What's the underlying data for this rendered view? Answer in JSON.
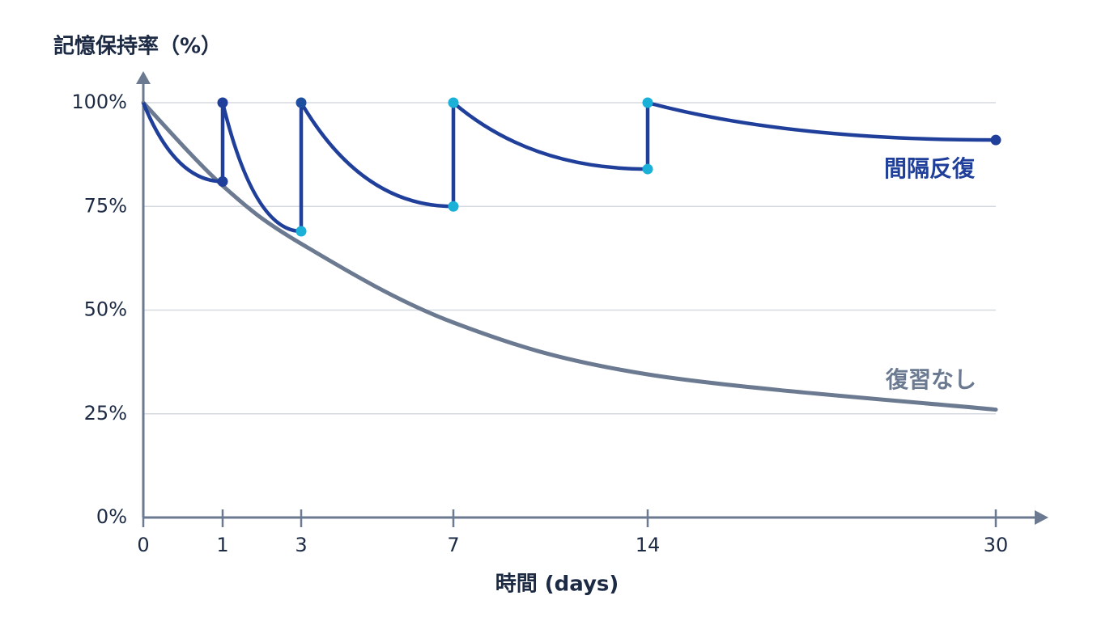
{
  "chart_data": {
    "type": "line",
    "y_label": "記憶保持率（%）",
    "x_label": "時間 (days)",
    "xlim": [
      0,
      30
    ],
    "xticks": [
      0,
      1,
      3,
      7,
      14,
      30
    ],
    "ylim": [
      0,
      100
    ],
    "yticks": [
      {
        "value": 0,
        "label": "0%"
      },
      {
        "value": 25,
        "label": "25%"
      },
      {
        "value": 50,
        "label": "50%"
      },
      {
        "value": 75,
        "label": "75%"
      },
      {
        "value": 100,
        "label": "100%"
      }
    ],
    "grid": true,
    "series": [
      {
        "name": "間隔反復",
        "color": "#1f3f9a",
        "x": [
          0,
          1,
          1,
          3,
          3,
          7,
          7,
          14,
          14,
          30
        ],
        "values": [
          100,
          81,
          100,
          69,
          100,
          75,
          100,
          84,
          100,
          91
        ],
        "marker_colors": [
          "#1f3f9a",
          "#1f3f9a",
          "#1f3f9a",
          "#1ab0d8",
          "#1f4f9f",
          "#1ab0d8",
          "#1ab0d8",
          "#1ab0d8",
          "#1ab0d8",
          "#1f3f9a"
        ]
      },
      {
        "name": "復習なし",
        "color": "#6b7a90",
        "x": [
          0,
          1,
          3,
          7,
          14,
          30
        ],
        "values": [
          100,
          80,
          66,
          47,
          34.5,
          26
        ]
      }
    ]
  }
}
